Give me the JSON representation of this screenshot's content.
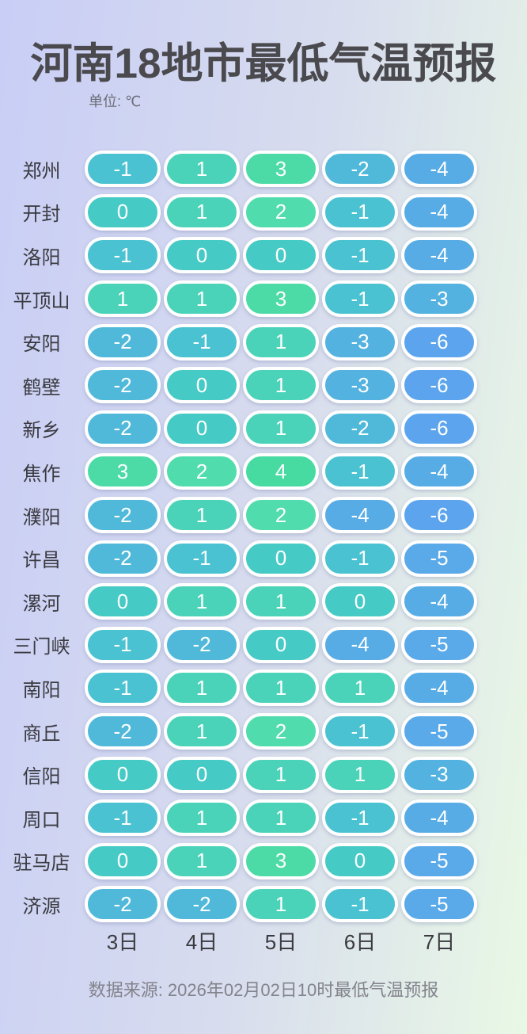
{
  "header": {
    "title": "河南18地市最低气温预报",
    "unit_label": "单位: ℃"
  },
  "footer": {
    "source": "数据来源: 2026年02月02日10时最低气温预报"
  },
  "color_scale": {
    "4": "#47dba2",
    "3": "#4cdba7",
    "2": "#51dcad",
    "1": "#4ad3b9",
    "0": "#46cac5",
    "-1": "#4ac2d1",
    "-2": "#50b9da",
    "-3": "#54b2e0",
    "-4": "#58ace5",
    "-5": "#5aa9e9",
    "-6": "#5ca5ee"
  },
  "chart_data": {
    "type": "heatmap",
    "title": "河南18地市最低气温预报",
    "unit": "℃",
    "columns": [
      "3日",
      "4日",
      "5日",
      "6日",
      "7日"
    ],
    "rows": [
      {
        "city": "郑州",
        "values": [
          -1,
          1,
          3,
          -2,
          -4
        ]
      },
      {
        "city": "开封",
        "values": [
          0,
          1,
          2,
          -1,
          -4
        ]
      },
      {
        "city": "洛阳",
        "values": [
          -1,
          0,
          0,
          -1,
          -4
        ]
      },
      {
        "city": "平顶山",
        "values": [
          1,
          1,
          3,
          -1,
          -3
        ]
      },
      {
        "city": "安阳",
        "values": [
          -2,
          -1,
          1,
          -3,
          -6
        ]
      },
      {
        "city": "鹤壁",
        "values": [
          -2,
          0,
          1,
          -3,
          -6
        ]
      },
      {
        "city": "新乡",
        "values": [
          -2,
          0,
          1,
          -2,
          -6
        ]
      },
      {
        "city": "焦作",
        "values": [
          3,
          2,
          4,
          -1,
          -4
        ]
      },
      {
        "city": "濮阳",
        "values": [
          -2,
          1,
          2,
          -4,
          -6
        ]
      },
      {
        "city": "许昌",
        "values": [
          -2,
          -1,
          0,
          -1,
          -5
        ]
      },
      {
        "city": "漯河",
        "values": [
          0,
          1,
          1,
          0,
          -4
        ]
      },
      {
        "city": "三门峡",
        "values": [
          -1,
          -2,
          0,
          -4,
          -5
        ]
      },
      {
        "city": "南阳",
        "values": [
          -1,
          1,
          1,
          1,
          -4
        ]
      },
      {
        "city": "商丘",
        "values": [
          -2,
          1,
          2,
          -1,
          -5
        ]
      },
      {
        "city": "信阳",
        "values": [
          0,
          0,
          1,
          1,
          -3
        ]
      },
      {
        "city": "周口",
        "values": [
          -1,
          1,
          1,
          -1,
          -4
        ]
      },
      {
        "city": "驻马店",
        "values": [
          0,
          1,
          3,
          0,
          -5
        ]
      },
      {
        "city": "济源",
        "values": [
          -2,
          -2,
          1,
          -1,
          -5
        ]
      }
    ],
    "value_range": [
      -6,
      4
    ],
    "legend": "none",
    "grid": "off"
  }
}
